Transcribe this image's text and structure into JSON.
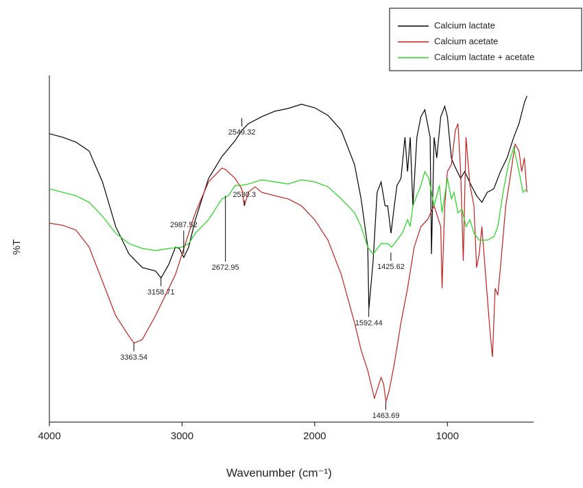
{
  "chart_data": {
    "type": "line",
    "x_label": "Wavenumber (cm⁻¹)",
    "y_label": "%T",
    "xlim": [
      4000,
      350
    ],
    "ylim": [
      0,
      100
    ],
    "xticks": [
      4000,
      3000,
      2000,
      1000
    ],
    "legend": "upper right",
    "series": [
      {
        "name": "Calcium lactate",
        "color": "#000000",
        "x": [
          4000,
          3900,
          3800,
          3700,
          3600,
          3500,
          3400,
          3300,
          3200,
          3158,
          3100,
          3050,
          3020,
          2987,
          2950,
          2900,
          2800,
          2700,
          2600,
          2549,
          2500,
          2400,
          2300,
          2200,
          2100,
          2000,
          1900,
          1800,
          1700,
          1650,
          1600,
          1592,
          1560,
          1530,
          1500,
          1470,
          1450,
          1425,
          1400,
          1380,
          1350,
          1320,
          1300,
          1280,
          1260,
          1230,
          1200,
          1170,
          1130,
          1120,
          1100,
          1080,
          1050,
          1020,
          1000,
          970,
          950,
          900,
          870,
          820,
          780,
          740,
          700,
          650,
          600,
          550,
          500,
          460,
          420,
          400
        ],
        "values": [
          83.2,
          82.2,
          80.8,
          78.2,
          69.3,
          56.4,
          48.5,
          44.6,
          43.6,
          41.6,
          45.5,
          50.5,
          50.1,
          47.5,
          50.5,
          58.4,
          70.3,
          76.6,
          81.2,
          84.2,
          86.1,
          88.1,
          89.7,
          90.5,
          91.7,
          90.7,
          88.5,
          84.2,
          74.3,
          64.4,
          50.5,
          32.7,
          46.5,
          66.3,
          69.3,
          62.4,
          62.4,
          54.5,
          62.4,
          68.3,
          70.3,
          82.2,
          72.3,
          82.2,
          62.4,
          82.2,
          88.1,
          90.1,
          82.2,
          48.5,
          82.2,
          76.2,
          88.1,
          91.1,
          88.1,
          76.2,
          74.3,
          70.3,
          72.3,
          68.3,
          65.3,
          63.4,
          66.3,
          67.3,
          72.3,
          76.2,
          82.2,
          86.1,
          92.1,
          94.1
        ]
      },
      {
        "name": "Calcium acetate",
        "color": "#c0201c",
        "x": [
          4000,
          3900,
          3800,
          3700,
          3600,
          3500,
          3400,
          3363,
          3300,
          3200,
          3100,
          3050,
          3000,
          2950,
          2900,
          2800,
          2700,
          2672,
          2600,
          2550,
          2530,
          2500,
          2450,
          2400,
          2300,
          2200,
          2100,
          2000,
          1900,
          1800,
          1700,
          1650,
          1600,
          1550,
          1500,
          1480,
          1463,
          1440,
          1400,
          1350,
          1300,
          1250,
          1200,
          1150,
          1100,
          1050,
          1040,
          1020,
          1000,
          970,
          940,
          920,
          900,
          880,
          860,
          830,
          800,
          780,
          760,
          740,
          700,
          680,
          660,
          640,
          620,
          600,
          560,
          520,
          490,
          460,
          440,
          420,
          400
        ],
        "values": [
          57.4,
          56.8,
          55.4,
          50.5,
          40.6,
          30.7,
          24.8,
          22.8,
          23.8,
          30.7,
          38.6,
          42.6,
          48.5,
          54.5,
          60.4,
          69.3,
          73.3,
          72.9,
          70.3,
          67.3,
          62.4,
          66.3,
          67.9,
          66.3,
          65.3,
          64.4,
          62.4,
          58.4,
          52.5,
          42.6,
          28.7,
          20.8,
          14.9,
          6.9,
          12.9,
          10.9,
          5.9,
          8.9,
          16.8,
          28.7,
          38.6,
          50.5,
          56.4,
          58.4,
          62.4,
          56.4,
          38.6,
          62.4,
          72.3,
          74.3,
          84.2,
          86.1,
          72.3,
          46.5,
          82.2,
          68.3,
          62.4,
          44.6,
          48.5,
          56.4,
          36.6,
          26.7,
          18.8,
          38.6,
          36.6,
          44.6,
          62.4,
          72.3,
          80.2,
          78.2,
          72.3,
          76.2,
          66.3
        ]
      },
      {
        "name": "Calcium lactate + acetate",
        "color": "#22d41c",
        "x": [
          4000,
          3900,
          3800,
          3700,
          3600,
          3500,
          3400,
          3300,
          3200,
          3100,
          3000,
          2950,
          2900,
          2800,
          2700,
          2650,
          2600,
          2550,
          2500,
          2400,
          2300,
          2200,
          2100,
          2000,
          1900,
          1800,
          1700,
          1650,
          1600,
          1560,
          1500,
          1450,
          1420,
          1380,
          1340,
          1300,
          1280,
          1260,
          1200,
          1170,
          1140,
          1100,
          1060,
          1040,
          1000,
          970,
          950,
          920,
          890,
          860,
          830,
          800,
          760,
          700,
          650,
          620,
          580,
          540,
          500,
          460,
          430,
          400
        ],
        "values": [
          67.3,
          66.3,
          65.3,
          63.4,
          59.4,
          54.5,
          51.5,
          50.1,
          49.5,
          50.1,
          50.5,
          51.5,
          54.5,
          58.4,
          64.4,
          65.3,
          68.3,
          68.3,
          68.7,
          69.9,
          69.3,
          68.7,
          69.9,
          69.3,
          67.9,
          64.4,
          60.4,
          56.4,
          50.5,
          48.5,
          51.5,
          51.5,
          50.5,
          52.5,
          54.5,
          58.4,
          56.4,
          62.4,
          68.3,
          72.3,
          70.3,
          62.4,
          68.3,
          60.4,
          70.3,
          64.4,
          66.3,
          60.4,
          61.4,
          56.4,
          58.4,
          54.5,
          52.5,
          52.5,
          53.5,
          56.4,
          66.3,
          74.3,
          79.2,
          72.3,
          66.3,
          67.3
        ]
      }
    ],
    "annotations": [
      {
        "x": 3158.71,
        "y": 41.6
      },
      {
        "x": 2987.52,
        "y": 48.5
      },
      {
        "x": 2672.95,
        "y": 65.3
      },
      {
        "x": 2549.32,
        "y": 87.7
      },
      {
        "x": 2530.3,
        "y": 62.4
      },
      {
        "x": 3363.54,
        "y": 22.8
      },
      {
        "x": 1592.44,
        "y": 32.7
      },
      {
        "x": 1425.62,
        "y": 48.9
      },
      {
        "x": 1463.69,
        "y": 5.9
      }
    ]
  }
}
